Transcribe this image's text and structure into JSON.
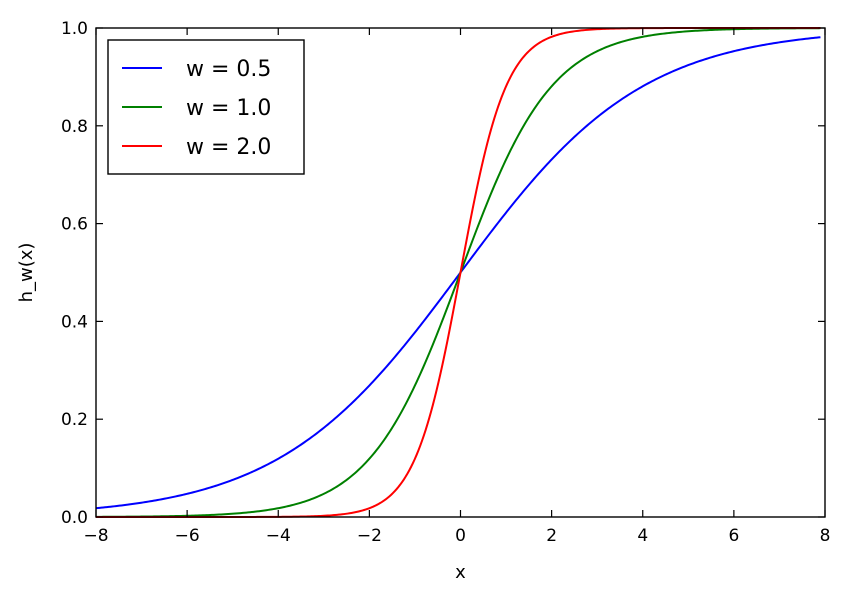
{
  "chart_data": {
    "type": "line",
    "title": "",
    "xlabel": "x",
    "ylabel": "h_w(x)",
    "xlim": [
      -8,
      8
    ],
    "ylim": [
      0,
      1
    ],
    "xticks": [
      -8,
      -6,
      -4,
      -2,
      0,
      2,
      4,
      6,
      8
    ],
    "xtick_labels": [
      "−8",
      "−6",
      "−4",
      "−2",
      "0",
      "2",
      "4",
      "6",
      "8"
    ],
    "yticks": [
      0,
      0.2,
      0.4,
      0.6,
      0.8,
      1.0
    ],
    "ytick_labels": [
      "0.0",
      "0.2",
      "0.4",
      "0.6",
      "0.8",
      "1.0"
    ],
    "grid": false,
    "legend_position": "top-left",
    "function": "sigmoid",
    "x": [
      -8,
      -7,
      -6,
      -5,
      -4,
      -3,
      -2,
      -1,
      0,
      1,
      2,
      3,
      4,
      5,
      6,
      7,
      7.9
    ],
    "series": [
      {
        "name": "w = 0.5",
        "color": "#0000ff",
        "w": 0.5,
        "values": [
          0.018,
          0.029,
          0.047,
          0.076,
          0.119,
          0.182,
          0.269,
          0.378,
          0.5,
          0.622,
          0.731,
          0.818,
          0.881,
          0.924,
          0.953,
          0.971,
          0.981
        ]
      },
      {
        "name": "w = 1.0",
        "color": "#008000",
        "w": 1.0,
        "values": [
          0.0003,
          0.0009,
          0.0025,
          0.0067,
          0.018,
          0.047,
          0.119,
          0.269,
          0.5,
          0.731,
          0.881,
          0.953,
          0.982,
          0.993,
          0.998,
          0.999,
          1.0
        ]
      },
      {
        "name": "w = 2.0",
        "color": "#ff0000",
        "w": 2.0,
        "values": [
          0.0,
          0.0,
          0.0,
          0.0,
          0.0003,
          0.0025,
          0.018,
          0.119,
          0.5,
          0.881,
          0.982,
          0.998,
          1.0,
          1.0,
          1.0,
          1.0,
          1.0
        ]
      }
    ]
  }
}
